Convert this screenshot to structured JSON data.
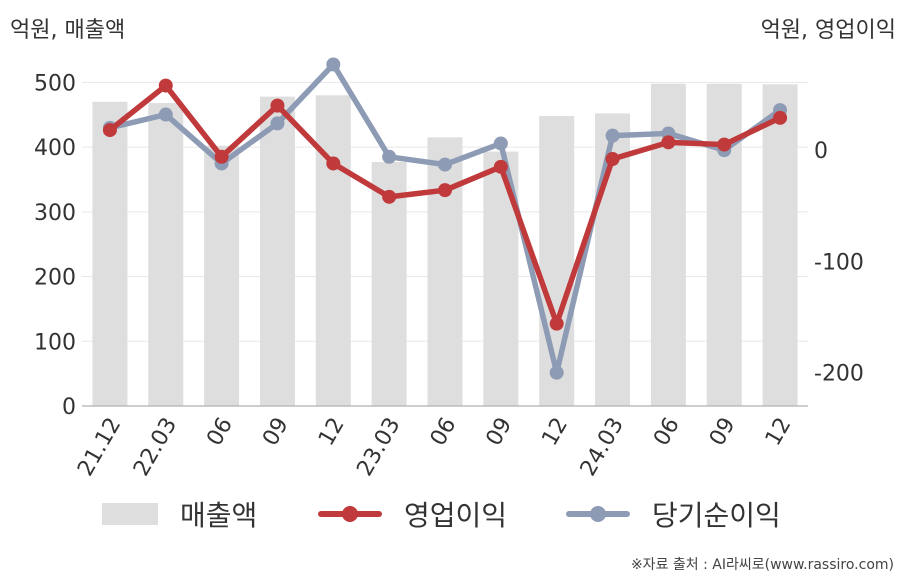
{
  "header": {
    "left_unit": "억원, 매출액",
    "right_unit": "억원, 영업이익"
  },
  "legend": {
    "revenue": "매출액",
    "operating_profit": "영업이익",
    "net_income": "당기순이익"
  },
  "source": "※자료 출처 : AI라씨로(www.rassiro.com)",
  "colors": {
    "revenue_bar": "#dedede",
    "operating_profit": "#c0393b",
    "net_income": "#8e9bb5",
    "grid": "#e8e8e8",
    "axis": "#b0b0b0"
  },
  "chart_data": {
    "type": "bar+line",
    "categories": [
      "21.12",
      "22.03",
      "06",
      "09",
      "12",
      "23.03",
      "06",
      "09",
      "12",
      "24.03",
      "06",
      "09",
      "12"
    ],
    "left_axis": {
      "ylim": [
        0,
        550
      ],
      "ticks": [
        0,
        100,
        200,
        300,
        400,
        500
      ]
    },
    "right_axis": {
      "ylim": [
        -230,
        90
      ],
      "ticks": [
        0,
        -100,
        -200
      ]
    },
    "series": [
      {
        "name": "매출액",
        "type": "bar",
        "axis": "left",
        "values": [
          470,
          468,
          402,
          478,
          480,
          377,
          415,
          393,
          448,
          452,
          498,
          498,
          497
        ]
      },
      {
        "name": "영업이익",
        "type": "line",
        "axis": "right",
        "values": [
          18,
          58,
          -6,
          40,
          -12,
          -42,
          -36,
          -15,
          -156,
          -8,
          7,
          5,
          29
        ]
      },
      {
        "name": "당기순이익",
        "type": "line",
        "axis": "right",
        "values": [
          20,
          32,
          -12,
          24,
          77,
          -6,
          -13,
          6,
          -200,
          13,
          15,
          0,
          36
        ]
      }
    ],
    "grid": true
  }
}
